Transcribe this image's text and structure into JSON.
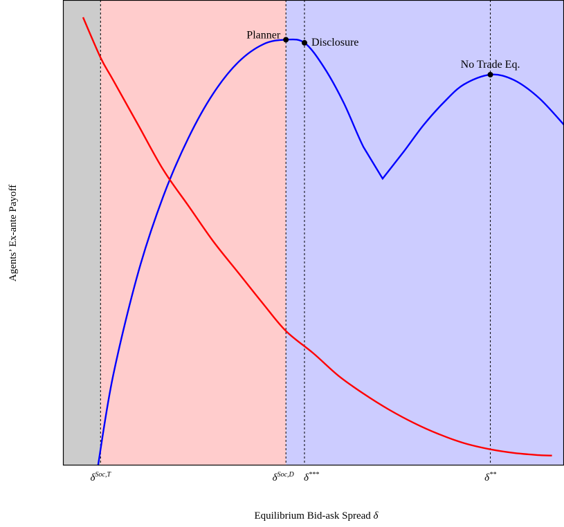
{
  "chart_data": {
    "type": "line",
    "xlabel_text": "Equilibrium Bid-ask Spread",
    "xlabel_symbol": "δ",
    "ylabel": "Agents’ Ex-ante Payoff",
    "xlim": [
      0,
      1
    ],
    "ylim": [
      0,
      1
    ],
    "grid": false,
    "legend": "none",
    "regions": [
      {
        "x_start": 0.0,
        "x_end": 0.075,
        "color": "#cccccc"
      },
      {
        "x_start": 0.075,
        "x_end": 0.445,
        "color": "#ffcccc"
      },
      {
        "x_start": 0.445,
        "x_end": 1.0,
        "color": "#ccccff"
      }
    ],
    "reference_lines": [
      0.075,
      0.445,
      0.482,
      0.853
    ],
    "ticks": [
      {
        "x": 0.075,
        "base": "δ",
        "sup": "Soc,T"
      },
      {
        "x": 0.445,
        "base": "δ",
        "sup": "Soc,D"
      },
      {
        "x": 0.482,
        "base": "δ",
        "sup": "***"
      },
      {
        "x": 0.853,
        "base": "δ",
        "sup": "**"
      }
    ],
    "series": [
      {
        "color": "#0000ff",
        "x": [
          0.07,
          0.1,
          0.15,
          0.2,
          0.25,
          0.3,
          0.35,
          0.4,
          0.445,
          0.482,
          0.52,
          0.56,
          0.6,
          0.638,
          0.68,
          0.72,
          0.76,
          0.8,
          0.853,
          0.9,
          0.95,
          1.0
        ],
        "y": [
          0.0,
          0.2,
          0.43,
          0.6,
          0.73,
          0.83,
          0.9,
          0.94,
          0.95,
          0.943,
          0.89,
          0.81,
          0.71,
          0.64,
          0.7,
          0.76,
          0.81,
          0.85,
          0.872,
          0.86,
          0.82,
          0.76
        ]
      },
      {
        "color": "#ff0000",
        "x": [
          0.04,
          0.075,
          0.1,
          0.15,
          0.2,
          0.25,
          0.3,
          0.35,
          0.4,
          0.445,
          0.5,
          0.55,
          0.6,
          0.65,
          0.7,
          0.75,
          0.8,
          0.853,
          0.9,
          0.95,
          0.976
        ],
        "y": [
          1.0,
          0.91,
          0.86,
          0.76,
          0.66,
          0.58,
          0.5,
          0.43,
          0.36,
          0.3,
          0.25,
          0.2,
          0.16,
          0.125,
          0.095,
          0.07,
          0.05,
          0.036,
          0.028,
          0.023,
          0.022
        ]
      }
    ],
    "points": [
      {
        "label": "Planner",
        "x": 0.445,
        "y": 0.95,
        "anchor": "left"
      },
      {
        "label": "Disclosure",
        "x": 0.482,
        "y": 0.943,
        "anchor": "right"
      },
      {
        "label": "No Trade Eq.",
        "x": 0.853,
        "y": 0.872,
        "anchor": "above"
      }
    ]
  }
}
